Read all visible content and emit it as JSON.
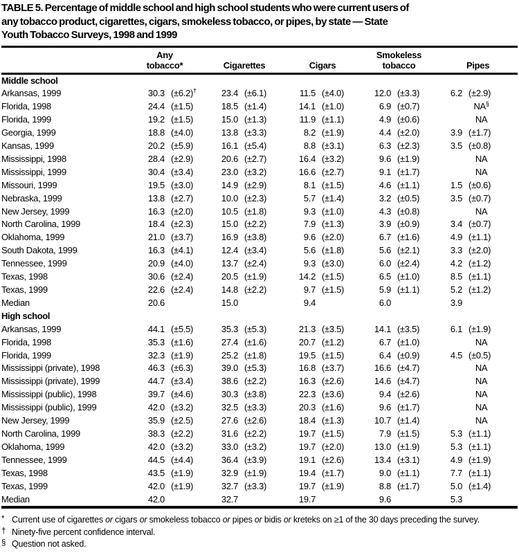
{
  "title_lines": [
    "TABLE 5. Percentage of middle school and high school students who were current users of",
    "any tobacco product, cigarettes, cigars, smokeless tobacco, or pipes, by state — State",
    "Youth Tobacco Surveys, 1998 and 1999"
  ],
  "table": {
    "column_groups": [
      {
        "line1": "Any",
        "line2": "tobacco*"
      },
      {
        "line1": "",
        "line2": "Cigarettes"
      },
      {
        "line1": "",
        "line2": "Cigars"
      },
      {
        "line1": "Smokeless",
        "line2": "tobacco"
      },
      {
        "line1": "",
        "line2": "Pipes"
      }
    ],
    "sections": [
      {
        "label": "Middle school",
        "rows": [
          {
            "state": "Arkansas, 1999",
            "cells": [
              [
                "30.3",
                "(±6.2)†"
              ],
              [
                "23.4",
                "(±6.1)"
              ],
              [
                "11.5",
                "(±4.0)"
              ],
              [
                "12.0",
                "(±3.3)"
              ],
              [
                "6.2",
                "(±2.9)"
              ]
            ]
          },
          {
            "state": "Florida, 1998",
            "cells": [
              [
                "24.4",
                "(±1.5)"
              ],
              [
                "18.5",
                "(±1.4)"
              ],
              [
                "14.1",
                "(±1.0)"
              ],
              [
                "6.9",
                "(±0.7)"
              ],
              "NA§"
            ]
          },
          {
            "state": "Florida, 1999",
            "cells": [
              [
                "19.2",
                "(±1.5)"
              ],
              [
                "15.0",
                "(±1.3)"
              ],
              [
                "11.9",
                "(±1.1)"
              ],
              [
                "4.9",
                "(±0.6)"
              ],
              "NA"
            ]
          },
          {
            "state": "Georgia, 1999",
            "cells": [
              [
                "18.8",
                "(±4.0)"
              ],
              [
                "13.8",
                "(±3.3)"
              ],
              [
                "8.2",
                "(±1.9)"
              ],
              [
                "4.4",
                "(±2.0)"
              ],
              [
                "3.9",
                "(±1.7)"
              ]
            ]
          },
          {
            "state": "Kansas, 1999",
            "cells": [
              [
                "20.2",
                "(±5.9)"
              ],
              [
                "16.1",
                "(±5.4)"
              ],
              [
                "8.8",
                "(±3.1)"
              ],
              [
                "6.3",
                "(±2.3)"
              ],
              [
                "3.5",
                "(±0.8)"
              ]
            ]
          },
          {
            "state": "Mississippi, 1998",
            "cells": [
              [
                "28.4",
                "(±2.9)"
              ],
              [
                "20.6",
                "(±2.7)"
              ],
              [
                "16.4",
                "(±3.2)"
              ],
              [
                "9.6",
                "(±1.9)"
              ],
              "NA"
            ]
          },
          {
            "state": "Mississippi, 1999",
            "cells": [
              [
                "30.4",
                "(±3.4)"
              ],
              [
                "23.0",
                "(±3.2)"
              ],
              [
                "16.6",
                "(±2.7)"
              ],
              [
                "9.1",
                "(±1.7)"
              ],
              "NA"
            ]
          },
          {
            "state": "Missouri, 1999",
            "cells": [
              [
                "19.5",
                "(±3.0)"
              ],
              [
                "14.9",
                "(±2.9)"
              ],
              [
                "8.1",
                "(±1.5)"
              ],
              [
                "4.6",
                "(±1.1)"
              ],
              [
                "1.5",
                "(±0.6)"
              ]
            ]
          },
          {
            "state": "Nebraska, 1999",
            "cells": [
              [
                "13.8",
                "(±2.7)"
              ],
              [
                "10.0",
                "(±2.3)"
              ],
              [
                "5.7",
                "(±1.4)"
              ],
              [
                "3.2",
                "(±0.5)"
              ],
              [
                "3.5",
                "(±0.7)"
              ]
            ]
          },
          {
            "state": "New Jersey, 1999",
            "cells": [
              [
                "16.3",
                "(±2.0)"
              ],
              [
                "10.5",
                "(±1.8)"
              ],
              [
                "9.3",
                "(±1.0)"
              ],
              [
                "4.3",
                "(±0.8)"
              ],
              "NA"
            ]
          },
          {
            "state": "North Carolina, 1999",
            "cells": [
              [
                "18.4",
                "(±2.3)"
              ],
              [
                "15.0",
                "(±2.2)"
              ],
              [
                "7.9",
                "(±1.3)"
              ],
              [
                "3.9",
                "(±0.9)"
              ],
              [
                "3.4",
                "(±0.7)"
              ]
            ]
          },
          {
            "state": "Oklahoma, 1999",
            "cells": [
              [
                "21.0",
                "(±3.7)"
              ],
              [
                "16.9",
                "(±3.8)"
              ],
              [
                "9.6",
                "(±2.0)"
              ],
              [
                "6.7",
                "(±1.6)"
              ],
              [
                "4.9",
                "(±1.1)"
              ]
            ]
          },
          {
            "state": "South Dakota, 1999",
            "cells": [
              [
                "16.3",
                "(±4.1)"
              ],
              [
                "12.4",
                "(±3.4)"
              ],
              [
                "5.6",
                "(±1.8)"
              ],
              [
                "5.6",
                "(±2.1)"
              ],
              [
                "3.3",
                "(±2.0)"
              ]
            ]
          },
          {
            "state": "Tennessee, 1999",
            "cells": [
              [
                "20.9",
                "(±4.0)"
              ],
              [
                "13.7",
                "(±2.4)"
              ],
              [
                "9.3",
                "(±3.0)"
              ],
              [
                "6.0",
                "(±2.4)"
              ],
              [
                "4.2",
                "(±1.2)"
              ]
            ]
          },
          {
            "state": "Texas, 1998",
            "cells": [
              [
                "30.6",
                "(±2.4)"
              ],
              [
                "20.5",
                "(±1.9)"
              ],
              [
                "14.2",
                "(±1.5)"
              ],
              [
                "6.5",
                "(±1.0)"
              ],
              [
                "8.5",
                "(±1.1)"
              ]
            ]
          },
          {
            "state": "Texas, 1999",
            "cells": [
              [
                "22.6",
                "(±2.4)"
              ],
              [
                "14.8",
                "(±2.2)"
              ],
              [
                "9.7",
                "(±1.5)"
              ],
              [
                "5.9",
                "(±1.1)"
              ],
              [
                "5.2",
                "(±1.2)"
              ]
            ]
          },
          {
            "state": "Median",
            "cells": [
              [
                "20.6",
                ""
              ],
              [
                "15.0",
                ""
              ],
              [
                "9.4",
                ""
              ],
              [
                "6.0",
                ""
              ],
              [
                "3.9",
                ""
              ]
            ]
          }
        ]
      },
      {
        "label": "High school",
        "rows": [
          {
            "state": "Arkansas, 1999",
            "cells": [
              [
                "44.1",
                "(±5.5)"
              ],
              [
                "35.3",
                "(±5.3)"
              ],
              [
                "21.3",
                "(±3.5)"
              ],
              [
                "14.1",
                "(±3.5)"
              ],
              [
                "6.1",
                "(±1.9)"
              ]
            ]
          },
          {
            "state": "Florida, 1998",
            "cells": [
              [
                "35.3",
                "(±1.6)"
              ],
              [
                "27.4",
                "(±1.6)"
              ],
              [
                "20.7",
                "(±1.2)"
              ],
              [
                "6.7",
                "(±1.0)"
              ],
              "NA"
            ]
          },
          {
            "state": "Florida, 1999",
            "cells": [
              [
                "32.3",
                "(±1.9)"
              ],
              [
                "25.2",
                "(±1.8)"
              ],
              [
                "19.5",
                "(±1.5)"
              ],
              [
                "6.4",
                "(±0.9)"
              ],
              [
                "4.5",
                "(±0.5)"
              ]
            ]
          },
          {
            "state": "Mississippi (private), 1998",
            "cells": [
              [
                "46.3",
                "(±6.3)"
              ],
              [
                "39.0",
                "(±5.3)"
              ],
              [
                "16.8",
                "(±3.7)"
              ],
              [
                "16.6",
                "(±4.7)"
              ],
              "NA"
            ]
          },
          {
            "state": "Mississippi (private), 1999",
            "cells": [
              [
                "44.7",
                "(±3.4)"
              ],
              [
                "38.6",
                "(±2.2)"
              ],
              [
                "16.3",
                "(±2.6)"
              ],
              [
                "14.6",
                "(±4.7)"
              ],
              "NA"
            ]
          },
          {
            "state": "Mississippi (public), 1998",
            "cells": [
              [
                "39.7",
                "(±4.6)"
              ],
              [
                "30.3",
                "(±3.8)"
              ],
              [
                "22.3",
                "(±3.6)"
              ],
              [
                "9.4",
                "(±2.6)"
              ],
              "NA"
            ]
          },
          {
            "state": "Mississippi (public), 1999",
            "cells": [
              [
                "42.0",
                "(±3.2)"
              ],
              [
                "32.5",
                "(±3.3)"
              ],
              [
                "20.3",
                "(±1.6)"
              ],
              [
                "9.6",
                "(±1.7)"
              ],
              "NA"
            ]
          },
          {
            "state": "New Jersey, 1999",
            "cells": [
              [
                "35.9",
                "(±2.5)"
              ],
              [
                "27.6",
                "(±2.6)"
              ],
              [
                "18.4",
                "(±1.3)"
              ],
              [
                "10.7",
                "(±1.4)"
              ],
              "NA"
            ]
          },
          {
            "state": "North Carolina, 1999",
            "cells": [
              [
                "38.3",
                "(±2.2)"
              ],
              [
                "31.6",
                "(±2.2)"
              ],
              [
                "19.7",
                "(±1.5)"
              ],
              [
                "7.9",
                "(±1.5)"
              ],
              [
                "5.3",
                "(±1.1)"
              ]
            ]
          },
          {
            "state": "Oklahoma, 1999",
            "cells": [
              [
                "42.0",
                "(±3.2)"
              ],
              [
                "33.0",
                "(±3.2)"
              ],
              [
                "19.7",
                "(±2.0)"
              ],
              [
                "13.0",
                "(±1.9)"
              ],
              [
                "5.3",
                "(±1.1)"
              ]
            ]
          },
          {
            "state": "Tennessee, 1999",
            "cells": [
              [
                "44.5",
                "(±4.4)"
              ],
              [
                "36.4",
                "(±3.9)"
              ],
              [
                "19.1",
                "(±2.6)"
              ],
              [
                "13.4",
                "(±3.1)"
              ],
              [
                "4.9",
                "(±1.9)"
              ]
            ]
          },
          {
            "state": "Texas, 1998",
            "cells": [
              [
                "43.5",
                "(±1.9)"
              ],
              [
                "32.9",
                "(±1.9)"
              ],
              [
                "19.4",
                "(±1.7)"
              ],
              [
                "9.0",
                "(±1.1)"
              ],
              [
                "7.7",
                "(±1.1)"
              ]
            ]
          },
          {
            "state": "Texas, 1999",
            "cells": [
              [
                "42.0",
                "(±1.9)"
              ],
              [
                "32.7",
                "(±3.3)"
              ],
              [
                "19.7",
                "(±1.9)"
              ],
              [
                "8.8",
                "(±1.7)"
              ],
              [
                "5.0",
                "(±1.4)"
              ]
            ]
          },
          {
            "state": "Median",
            "cells": [
              [
                "42.0",
                ""
              ],
              [
                "32.7",
                ""
              ],
              [
                "19.7",
                ""
              ],
              [
                "9.6",
                ""
              ],
              [
                "5.3",
                ""
              ]
            ]
          }
        ]
      }
    ]
  },
  "footnotes": [
    {
      "marker": "*",
      "text": "Current use of cigarettes or cigars or smokeless tobacco or pipes or bidis or kreteks on ≥1 of the 30 days preceding the survey."
    },
    {
      "marker": "†",
      "text": "Ninety-five percent confidence interval."
    },
    {
      "marker": "§",
      "text": "Question not asked."
    }
  ]
}
